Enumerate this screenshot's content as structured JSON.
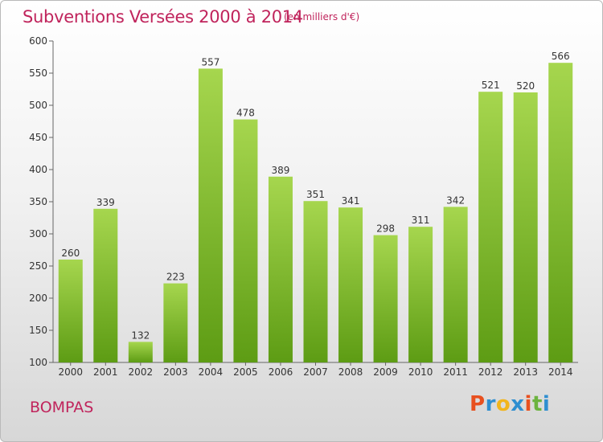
{
  "header": {
    "title": "Subventions Versées 2000 à 2014",
    "subtitle": "(en milliers d'€)"
  },
  "footer": {
    "town": "BOMPAS",
    "logo_text": "Proxiti",
    "logo_colors": [
      "#e8501f",
      "#2f8fd0",
      "#f2b51c",
      "#2f8fd0",
      "#e8501f",
      "#6cb33f",
      "#2f8fd0"
    ]
  },
  "colors": {
    "title": "#c0245c",
    "bar_light": "#a6d64e",
    "bar_dark": "#5d9c14",
    "axis": "#555555"
  },
  "chart_data": {
    "type": "bar",
    "title": "Subventions Versées 2000 à 2014",
    "subtitle": "(en milliers d'€)",
    "categories": [
      "2000",
      "2001",
      "2002",
      "2003",
      "2004",
      "2005",
      "2006",
      "2007",
      "2008",
      "2009",
      "2010",
      "2011",
      "2012",
      "2013",
      "2014"
    ],
    "values": [
      260,
      339,
      132,
      223,
      557,
      478,
      389,
      351,
      341,
      298,
      311,
      342,
      521,
      520,
      566
    ],
    "ylim": [
      100,
      600
    ],
    "yticks": [
      100,
      150,
      200,
      250,
      300,
      350,
      400,
      450,
      500,
      550,
      600
    ],
    "xlabel": "",
    "ylabel": "",
    "grid": false,
    "data_labels": true
  }
}
